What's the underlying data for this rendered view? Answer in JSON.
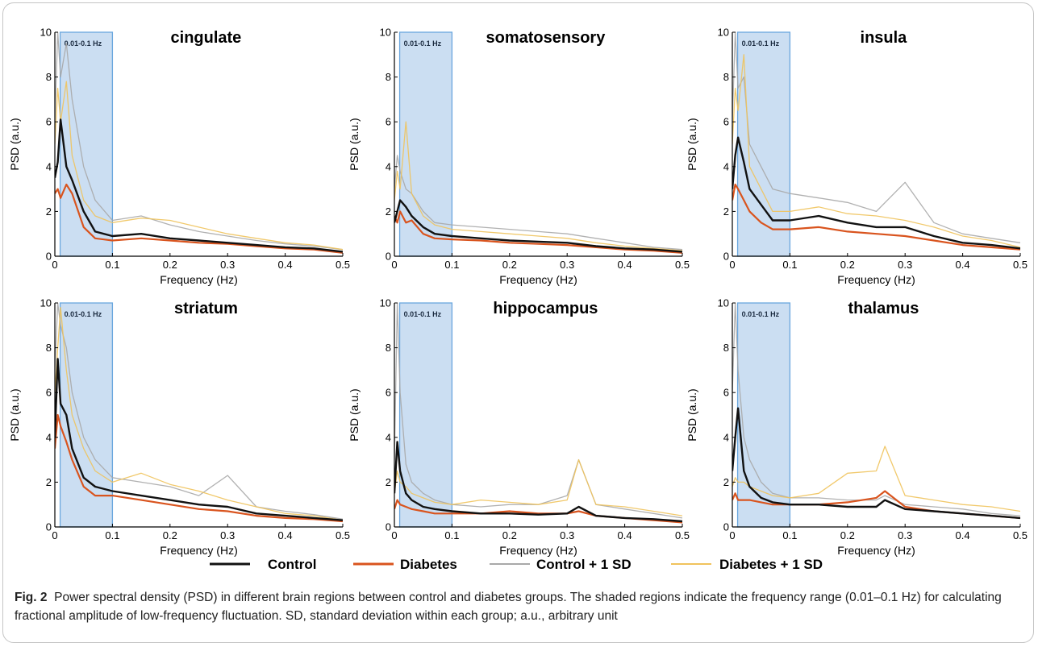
{
  "figure": {
    "label": "Fig. 2",
    "caption": "Power spectral density (PSD) in different brain regions between control and diabetes groups. The shaded regions indicate the frequency range (0.01–0.1 Hz) for calculating fractional amplitude of low-frequency fluctuation. SD, standard deviation within each group; a.u., arbitrary unit"
  },
  "band_label": "0.01-0.1 Hz",
  "band_range": [
    0.01,
    0.1
  ],
  "colors": {
    "control": "#111111",
    "diabetes": "#d9541e",
    "control_sd": "#a9a9a9",
    "diabetes_sd": "#f0c35c",
    "band_fill": "#b9d3ee",
    "band_edge": "#6aa7de"
  },
  "legend": [
    {
      "key": "control",
      "label": "Control"
    },
    {
      "key": "diabetes",
      "label": "Diabetes"
    },
    {
      "key": "control_sd",
      "label": "Control + 1 SD"
    },
    {
      "key": "diabetes_sd",
      "label": "Diabetes + 1 SD"
    }
  ],
  "chart_data": [
    {
      "type": "line",
      "title": "cingulate",
      "xlabel": "Frequency (Hz)",
      "ylabel": "PSD (a.u.)",
      "xlim": [
        0,
        0.5
      ],
      "ylim": [
        0,
        10
      ],
      "xticks": [
        0,
        0.1,
        0.2,
        0.3,
        0.4,
        0.5
      ],
      "yticks": [
        0,
        2,
        4,
        6,
        8,
        10
      ],
      "x": [
        0.0,
        0.005,
        0.01,
        0.02,
        0.03,
        0.05,
        0.07,
        0.1,
        0.15,
        0.2,
        0.25,
        0.3,
        0.35,
        0.4,
        0.45,
        0.5
      ],
      "series": [
        {
          "name": "Control",
          "key": "control",
          "values": [
            3.5,
            4.2,
            6.1,
            4.0,
            3.4,
            2.0,
            1.1,
            0.9,
            1.0,
            0.8,
            0.7,
            0.6,
            0.5,
            0.4,
            0.35,
            0.2
          ]
        },
        {
          "name": "Diabetes",
          "key": "diabetes",
          "values": [
            2.8,
            3.0,
            2.6,
            3.2,
            2.8,
            1.3,
            0.8,
            0.7,
            0.8,
            0.7,
            0.6,
            0.55,
            0.45,
            0.35,
            0.3,
            0.15
          ]
        },
        {
          "name": "Control + 1 SD",
          "key": "control_sd",
          "values": [
            6.0,
            10.0,
            8.0,
            9.5,
            7.0,
            4.0,
            2.5,
            1.6,
            1.8,
            1.4,
            1.1,
            0.9,
            0.7,
            0.55,
            0.45,
            0.3
          ]
        },
        {
          "name": "Diabetes + 1 SD",
          "key": "diabetes_sd",
          "values": [
            5.0,
            7.5,
            6.0,
            7.8,
            4.5,
            2.5,
            1.8,
            1.5,
            1.7,
            1.6,
            1.3,
            1.0,
            0.8,
            0.6,
            0.5,
            0.3
          ]
        }
      ]
    },
    {
      "type": "line",
      "title": "somatosensory",
      "xlabel": "Frequency (Hz)",
      "ylabel": "PSD (a.u.)",
      "xlim": [
        0,
        0.5
      ],
      "ylim": [
        0,
        10
      ],
      "xticks": [
        0,
        0.1,
        0.2,
        0.3,
        0.4,
        0.5
      ],
      "yticks": [
        0,
        2,
        4,
        6,
        8,
        10
      ],
      "x": [
        0.0,
        0.005,
        0.01,
        0.02,
        0.03,
        0.05,
        0.07,
        0.1,
        0.15,
        0.2,
        0.25,
        0.3,
        0.35,
        0.4,
        0.45,
        0.5
      ],
      "series": [
        {
          "name": "Control",
          "key": "control",
          "values": [
            1.5,
            2.0,
            2.5,
            2.2,
            1.8,
            1.3,
            1.0,
            0.9,
            0.8,
            0.7,
            0.65,
            0.6,
            0.45,
            0.35,
            0.3,
            0.2
          ]
        },
        {
          "name": "Diabetes",
          "key": "diabetes",
          "values": [
            1.8,
            1.5,
            2.0,
            1.5,
            1.6,
            1.0,
            0.8,
            0.75,
            0.7,
            0.6,
            0.55,
            0.5,
            0.4,
            0.3,
            0.25,
            0.15
          ]
        },
        {
          "name": "Control + 1 SD",
          "key": "control_sd",
          "values": [
            3.0,
            4.5,
            3.8,
            3.0,
            2.8,
            2.0,
            1.5,
            1.4,
            1.3,
            1.2,
            1.1,
            1.0,
            0.8,
            0.6,
            0.4,
            0.3
          ]
        },
        {
          "name": "Diabetes + 1 SD",
          "key": "diabetes_sd",
          "values": [
            2.5,
            3.8,
            3.0,
            6.0,
            2.8,
            1.8,
            1.4,
            1.2,
            1.1,
            1.0,
            0.9,
            0.8,
            0.6,
            0.45,
            0.35,
            0.25
          ]
        }
      ]
    },
    {
      "type": "line",
      "title": "insula",
      "xlabel": "Frequency (Hz)",
      "ylabel": "PSD (a.u.)",
      "xlim": [
        0,
        0.5
      ],
      "ylim": [
        0,
        10
      ],
      "xticks": [
        0,
        0.1,
        0.2,
        0.3,
        0.4,
        0.5
      ],
      "yticks": [
        0,
        2,
        4,
        6,
        8,
        10
      ],
      "x": [
        0.0,
        0.005,
        0.01,
        0.02,
        0.03,
        0.05,
        0.07,
        0.1,
        0.15,
        0.2,
        0.25,
        0.3,
        0.35,
        0.4,
        0.45,
        0.5
      ],
      "series": [
        {
          "name": "Control",
          "key": "control",
          "values": [
            3.0,
            4.5,
            5.3,
            4.2,
            3.0,
            2.3,
            1.6,
            1.6,
            1.8,
            1.5,
            1.3,
            1.3,
            0.9,
            0.6,
            0.5,
            0.35
          ]
        },
        {
          "name": "Diabetes",
          "key": "diabetes",
          "values": [
            2.5,
            3.2,
            3.0,
            2.5,
            2.0,
            1.5,
            1.2,
            1.2,
            1.3,
            1.1,
            1.0,
            0.9,
            0.7,
            0.5,
            0.4,
            0.3
          ]
        },
        {
          "name": "Control + 1 SD",
          "key": "control_sd",
          "values": [
            6.0,
            10.0,
            7.5,
            8.0,
            5.0,
            4.0,
            3.0,
            2.8,
            2.6,
            2.4,
            2.0,
            3.3,
            1.5,
            1.0,
            0.8,
            0.6
          ]
        },
        {
          "name": "Diabetes + 1 SD",
          "key": "diabetes_sd",
          "values": [
            5.0,
            7.5,
            6.5,
            9.0,
            4.0,
            3.0,
            2.0,
            2.0,
            2.2,
            1.9,
            1.8,
            1.6,
            1.3,
            0.9,
            0.7,
            0.4
          ]
        }
      ]
    },
    {
      "type": "line",
      "title": "striatum",
      "xlabel": "Frequency (Hz)",
      "ylabel": "PSD (a.u.)",
      "xlim": [
        0,
        0.5
      ],
      "ylim": [
        0,
        10
      ],
      "xticks": [
        0,
        0.1,
        0.2,
        0.3,
        0.4,
        0.5
      ],
      "yticks": [
        0,
        2,
        4,
        6,
        8,
        10
      ],
      "x": [
        0.0,
        0.005,
        0.01,
        0.02,
        0.03,
        0.05,
        0.07,
        0.1,
        0.15,
        0.2,
        0.25,
        0.3,
        0.35,
        0.4,
        0.45,
        0.5
      ],
      "series": [
        {
          "name": "Control",
          "key": "control",
          "values": [
            4.0,
            7.5,
            5.5,
            5.0,
            3.5,
            2.2,
            1.8,
            1.6,
            1.4,
            1.2,
            1.0,
            0.9,
            0.6,
            0.5,
            0.4,
            0.3
          ]
        },
        {
          "name": "Diabetes",
          "key": "diabetes",
          "values": [
            3.5,
            5.0,
            4.5,
            3.8,
            3.0,
            1.8,
            1.4,
            1.4,
            1.2,
            1.0,
            0.8,
            0.7,
            0.5,
            0.4,
            0.35,
            0.25
          ]
        },
        {
          "name": "Control + 1 SD",
          "key": "control_sd",
          "values": [
            7.0,
            10.0,
            9.0,
            8.0,
            6.0,
            4.0,
            3.0,
            2.2,
            2.0,
            1.8,
            1.4,
            2.3,
            0.9,
            0.7,
            0.55,
            0.35
          ]
        },
        {
          "name": "Diabetes + 1 SD",
          "key": "diabetes_sd",
          "values": [
            6.0,
            8.0,
            9.8,
            7.0,
            5.0,
            3.5,
            2.5,
            2.0,
            2.4,
            1.9,
            1.6,
            1.2,
            0.9,
            0.6,
            0.5,
            0.3
          ]
        }
      ]
    },
    {
      "type": "line",
      "title": "hippocampus",
      "xlabel": "Frequency (Hz)",
      "ylabel": "PSD (a.u.)",
      "xlim": [
        0,
        0.5
      ],
      "ylim": [
        0,
        10
      ],
      "xticks": [
        0,
        0.1,
        0.2,
        0.3,
        0.4,
        0.5
      ],
      "yticks": [
        0,
        2,
        4,
        6,
        8,
        10
      ],
      "x": [
        0.0,
        0.005,
        0.01,
        0.02,
        0.03,
        0.05,
        0.07,
        0.1,
        0.15,
        0.2,
        0.25,
        0.3,
        0.32,
        0.35,
        0.4,
        0.45,
        0.5
      ],
      "series": [
        {
          "name": "Control",
          "key": "control",
          "values": [
            1.5,
            3.8,
            2.5,
            1.5,
            1.2,
            0.9,
            0.8,
            0.7,
            0.6,
            0.6,
            0.55,
            0.6,
            0.9,
            0.5,
            0.4,
            0.35,
            0.25
          ]
        },
        {
          "name": "Diabetes",
          "key": "diabetes",
          "values": [
            0.8,
            1.2,
            1.0,
            0.9,
            0.8,
            0.7,
            0.6,
            0.6,
            0.6,
            0.7,
            0.6,
            0.6,
            0.7,
            0.5,
            0.4,
            0.3,
            0.2
          ]
        },
        {
          "name": "Control + 1 SD",
          "key": "control_sd",
          "values": [
            3.0,
            10.0,
            6.0,
            2.8,
            2.0,
            1.5,
            1.2,
            1.0,
            0.9,
            1.0,
            1.0,
            1.4,
            3.0,
            1.0,
            0.8,
            0.6,
            0.4
          ]
        },
        {
          "name": "Diabetes + 1 SD",
          "key": "diabetes_sd",
          "values": [
            1.5,
            2.5,
            2.0,
            1.8,
            1.5,
            1.3,
            1.1,
            1.0,
            1.2,
            1.1,
            1.0,
            1.2,
            3.0,
            1.0,
            0.9,
            0.7,
            0.5
          ]
        }
      ]
    },
    {
      "type": "line",
      "title": "thalamus",
      "xlabel": "Frequency (Hz)",
      "ylabel": "PSD (a.u.)",
      "xlim": [
        0,
        0.5
      ],
      "ylim": [
        0,
        10
      ],
      "xticks": [
        0,
        0.1,
        0.2,
        0.3,
        0.4,
        0.5
      ],
      "yticks": [
        0,
        2,
        4,
        6,
        8,
        10
      ],
      "x": [
        0.0,
        0.005,
        0.01,
        0.02,
        0.03,
        0.05,
        0.07,
        0.1,
        0.15,
        0.2,
        0.25,
        0.265,
        0.3,
        0.35,
        0.4,
        0.45,
        0.5
      ],
      "series": [
        {
          "name": "Control",
          "key": "control",
          "values": [
            2.5,
            4.0,
            5.3,
            2.5,
            1.8,
            1.3,
            1.1,
            1.0,
            1.0,
            0.9,
            0.9,
            1.2,
            0.8,
            0.7,
            0.6,
            0.5,
            0.4
          ]
        },
        {
          "name": "Diabetes",
          "key": "diabetes",
          "values": [
            1.2,
            1.5,
            1.2,
            1.2,
            1.2,
            1.1,
            1.0,
            1.0,
            1.0,
            1.1,
            1.3,
            1.6,
            0.9,
            0.7,
            0.6,
            0.5,
            0.4
          ]
        },
        {
          "name": "Control + 1 SD",
          "key": "control_sd",
          "values": [
            6.0,
            10.0,
            7.0,
            4.0,
            3.0,
            2.0,
            1.5,
            1.3,
            1.3,
            1.2,
            1.2,
            1.4,
            1.0,
            0.9,
            0.8,
            0.6,
            0.5
          ]
        },
        {
          "name": "Diabetes + 1 SD",
          "key": "diabetes_sd",
          "values": [
            1.8,
            2.2,
            2.0,
            2.0,
            1.8,
            1.6,
            1.4,
            1.3,
            1.5,
            2.4,
            2.5,
            3.6,
            1.4,
            1.2,
            1.0,
            0.9,
            0.7
          ]
        }
      ]
    }
  ]
}
